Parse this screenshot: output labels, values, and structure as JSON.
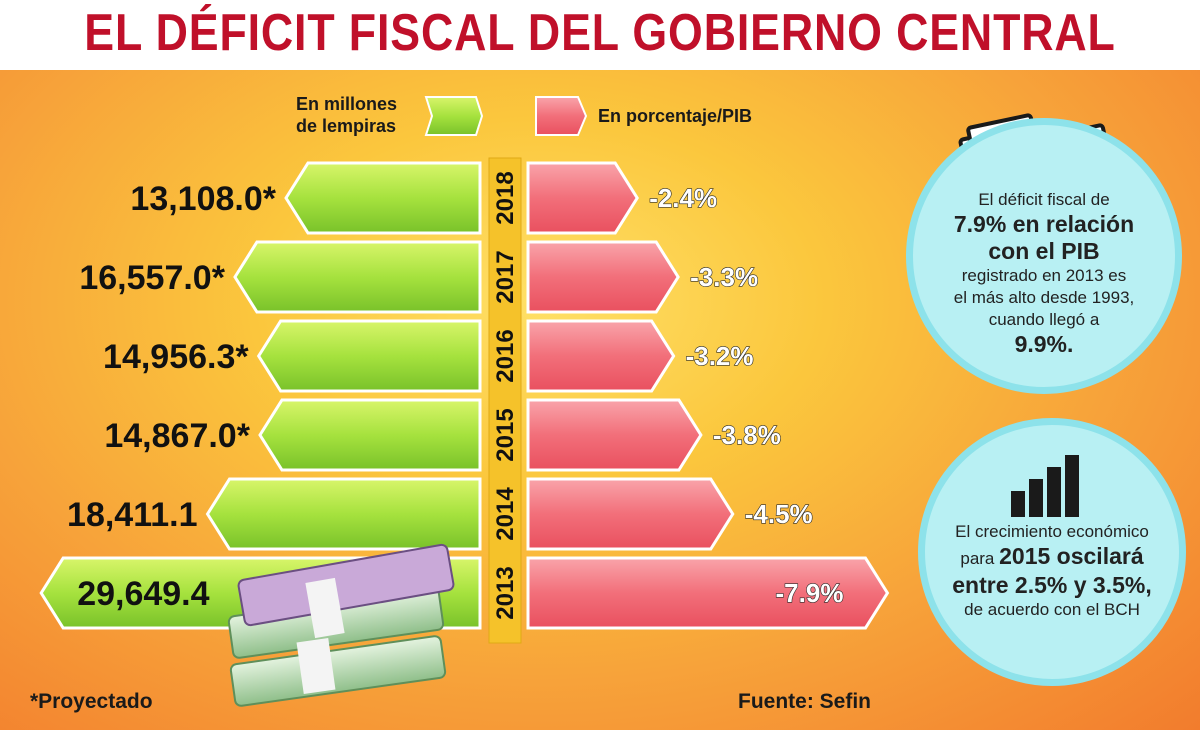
{
  "title": "EL DÉFICIT FISCAL DEL GOBIERNO CENTRAL",
  "legend": {
    "left_label_line1": "En millones",
    "left_label_line2": "de lempiras",
    "right_label": "En porcentaje/PIB"
  },
  "colors": {
    "title": "#c0102a",
    "green_bar": "#a6e23e",
    "pink_bar": "#f26f7a",
    "year_box": "#f5c22a",
    "circle": "#b8f0f3"
  },
  "chart_data": {
    "type": "bar",
    "orientation": "horizontal-diverging",
    "categories": [
      "2018",
      "2017",
      "2016",
      "2015",
      "2014",
      "2013"
    ],
    "series": [
      {
        "name": "En millones de lempiras",
        "values": [
          13108.0,
          16557.0,
          14956.3,
          14867.0,
          18411.1,
          29649.4
        ],
        "labels": [
          "13,108.0*",
          "16,557.0*",
          "14,956.3*",
          "14,867.0*",
          "18,411.1",
          "29,649.4"
        ]
      },
      {
        "name": "En porcentaje/PIB",
        "values": [
          -2.4,
          -3.3,
          -3.2,
          -3.8,
          -4.5,
          -7.9
        ],
        "labels": [
          "-2.4%",
          "-3.3%",
          "-3.2%",
          "-3.8%",
          "-4.5%",
          "-7.9%"
        ]
      }
    ]
  },
  "info1": {
    "line1": "El déficit fiscal de",
    "line2": "7.9% en relación",
    "line3": "con el PIB",
    "line4": "registrado en 2013 es",
    "line5": "el más alto desde 1993,",
    "line6": "cuando llegó a",
    "line7": "9.9%."
  },
  "info2": {
    "line1": "El crecimiento económico",
    "line2_a": "para ",
    "line2_b": "2015 oscilará",
    "line3": "entre 2.5% y 3.5%,",
    "line4": "de acuerdo con el BCH"
  },
  "footnote": "*Proyectado",
  "source": "Fuente: Sefin"
}
